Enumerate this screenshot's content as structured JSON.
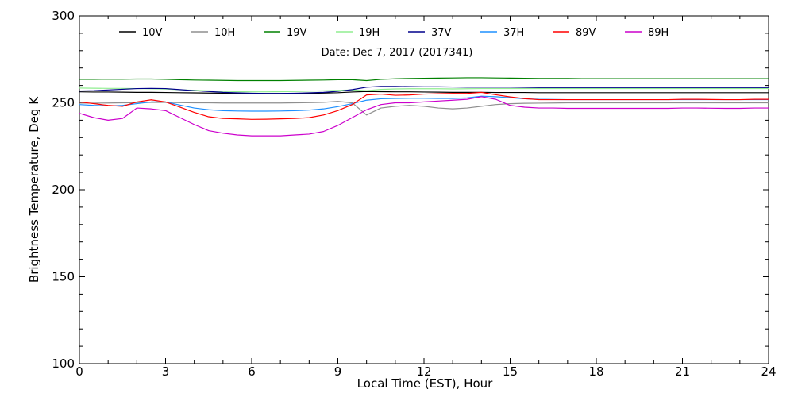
{
  "chart_data": {
    "type": "line",
    "subtitle": "Date: Dec  7, 2017 (2017341)",
    "xlabel": "Local Time (EST), Hour",
    "ylabel": "Brightness Temperature, Deg K",
    "xlim": [
      0,
      24
    ],
    "ylim": [
      100,
      300
    ],
    "x_ticks": [
      0,
      3,
      6,
      9,
      12,
      15,
      18,
      21,
      24
    ],
    "y_ticks": [
      100,
      150,
      200,
      250,
      300
    ],
    "x_tick_labels": [
      "0",
      "3",
      "6",
      "9",
      "12",
      "15",
      "18",
      "21",
      "24"
    ],
    "y_tick_labels": [
      "100",
      "150",
      "200",
      "250",
      "300"
    ],
    "grid": false,
    "legend_position": "top",
    "x": [
      0,
      0.5,
      1,
      1.5,
      2,
      2.5,
      3,
      3.5,
      4,
      4.5,
      5,
      5.5,
      6,
      6.5,
      7,
      7.5,
      8,
      8.5,
      9,
      9.5,
      10,
      10.5,
      11,
      11.5,
      12,
      12.5,
      13,
      13.5,
      14,
      14.5,
      15,
      15.5,
      16,
      16.5,
      17,
      17.5,
      18,
      18.5,
      19,
      19.5,
      20,
      20.5,
      21,
      21.5,
      22,
      22.5,
      23,
      23.5,
      24
    ],
    "series": [
      {
        "name": "10V",
        "color": "#000000",
        "values": [
          256.3,
          256.2,
          256.2,
          256.1,
          256.0,
          256.0,
          255.9,
          255.8,
          255.7,
          255.6,
          255.5,
          255.4,
          255.4,
          255.3,
          255.3,
          255.3,
          255.4,
          255.6,
          255.8,
          256.2,
          256.5,
          256.4,
          256.3,
          256.3,
          256.2,
          256.1,
          256.0,
          256.0,
          256.0,
          255.9,
          255.9,
          255.9,
          255.8,
          255.8,
          255.8,
          255.8,
          255.8,
          255.8,
          255.8,
          255.8,
          255.8,
          255.8,
          255.8,
          255.8,
          255.8,
          255.8,
          255.8,
          255.8,
          255.8
        ]
      },
      {
        "name": "10H",
        "color": "#8f8f8f",
        "values": [
          249.8,
          249.8,
          249.9,
          250.0,
          250.1,
          250.2,
          250.2,
          250.1,
          250.0,
          250.0,
          249.9,
          249.9,
          249.9,
          249.9,
          249.9,
          250.0,
          250.1,
          250.3,
          250.8,
          250.0,
          243.0,
          247.0,
          248.0,
          248.5,
          248.0,
          247.0,
          246.5,
          247.0,
          248.0,
          249.0,
          249.5,
          249.7,
          249.8,
          249.9,
          250.0,
          250.0,
          250.0,
          250.0,
          250.0,
          250.0,
          250.0,
          250.0,
          250.0,
          250.0,
          250.0,
          250.0,
          250.0,
          250.0,
          250.0
        ]
      },
      {
        "name": "19V",
        "color": "#008000",
        "values": [
          263.5,
          263.5,
          263.6,
          263.6,
          263.7,
          263.7,
          263.5,
          263.3,
          263.1,
          263.0,
          262.9,
          262.8,
          262.8,
          262.8,
          262.8,
          262.9,
          263.0,
          263.1,
          263.3,
          263.3,
          262.8,
          263.5,
          263.8,
          264.0,
          264.1,
          264.2,
          264.3,
          264.4,
          264.4,
          264.3,
          264.2,
          264.1,
          264.0,
          264.0,
          264.0,
          263.9,
          263.9,
          263.9,
          263.9,
          263.9,
          263.9,
          263.9,
          263.9,
          263.9,
          263.9,
          263.9,
          263.9,
          263.9,
          263.9
        ]
      },
      {
        "name": "19H",
        "color": "#90ee90",
        "values": [
          258.5,
          258.4,
          258.3,
          258.3,
          258.2,
          258.1,
          257.9,
          257.5,
          257.2,
          256.9,
          256.6,
          256.4,
          256.3,
          256.3,
          256.4,
          256.5,
          256.7,
          256.9,
          257.2,
          257.4,
          257.0,
          257.7,
          258.0,
          258.1,
          258.1,
          258.1,
          258.0,
          258.1,
          258.2,
          258.2,
          258.2,
          258.2,
          258.2,
          258.2,
          258.2,
          258.2,
          258.2,
          258.2,
          258.2,
          258.2,
          258.2,
          258.2,
          258.2,
          258.2,
          258.2,
          258.2,
          258.2,
          258.2,
          258.2
        ]
      },
      {
        "name": "37V",
        "color": "#00008b",
        "values": [
          256.8,
          257.0,
          257.4,
          257.8,
          258.2,
          258.3,
          258.2,
          257.6,
          257.0,
          256.5,
          256.0,
          255.7,
          255.5,
          255.4,
          255.4,
          255.5,
          255.7,
          256.0,
          256.6,
          257.6,
          259.0,
          259.4,
          259.4,
          259.3,
          259.2,
          259.2,
          259.1,
          259.0,
          259.0,
          259.0,
          259.0,
          258.9,
          258.8,
          258.8,
          258.8,
          258.8,
          258.8,
          258.8,
          258.8,
          258.8,
          258.8,
          258.8,
          258.8,
          258.8,
          258.8,
          258.8,
          258.8,
          258.8,
          258.8
        ]
      },
      {
        "name": "37H",
        "color": "#1e90ff",
        "values": [
          249.0,
          248.5,
          248.2,
          248.5,
          249.5,
          250.5,
          250.5,
          248.7,
          247.0,
          246.0,
          245.5,
          245.3,
          245.2,
          245.2,
          245.3,
          245.5,
          245.8,
          246.5,
          247.8,
          249.5,
          251.5,
          252.3,
          252.5,
          252.6,
          252.6,
          252.5,
          252.5,
          252.8,
          253.8,
          253.5,
          252.9,
          252.3,
          252.0,
          251.9,
          251.8,
          251.8,
          251.8,
          251.8,
          251.8,
          251.8,
          251.8,
          251.8,
          251.8,
          251.8,
          251.8,
          251.8,
          251.8,
          251.8,
          251.8
        ]
      },
      {
        "name": "89V",
        "color": "#ff0000",
        "values": [
          250.5,
          249.5,
          248.5,
          248.0,
          250.5,
          251.7,
          250.5,
          247.5,
          244.5,
          242.0,
          241.0,
          240.8,
          240.5,
          240.6,
          240.8,
          241.0,
          241.5,
          243.0,
          245.5,
          249.0,
          254.5,
          255.0,
          254.3,
          254.5,
          255.0,
          255.2,
          255.4,
          255.4,
          256.0,
          254.6,
          253.4,
          252.4,
          251.8,
          251.8,
          251.8,
          251.8,
          251.8,
          251.8,
          251.8,
          251.8,
          251.8,
          251.8,
          252.0,
          252.0,
          251.9,
          251.8,
          251.8,
          252.0,
          252.0
        ]
      },
      {
        "name": "89H",
        "color": "#cc00cc",
        "values": [
          244.0,
          241.5,
          240.0,
          241.0,
          247.0,
          246.5,
          245.5,
          241.5,
          237.5,
          234.0,
          232.5,
          231.5,
          231.0,
          231.0,
          231.0,
          231.5,
          232.0,
          233.5,
          237.0,
          241.5,
          246.0,
          249.0,
          250.0,
          250.0,
          250.5,
          251.0,
          251.5,
          252.0,
          253.5,
          252.0,
          248.5,
          247.5,
          247.0,
          247.0,
          246.8,
          246.8,
          246.8,
          246.8,
          246.8,
          246.8,
          246.8,
          246.8,
          247.0,
          247.0,
          246.9,
          246.8,
          246.8,
          247.0,
          247.0
        ]
      }
    ]
  }
}
